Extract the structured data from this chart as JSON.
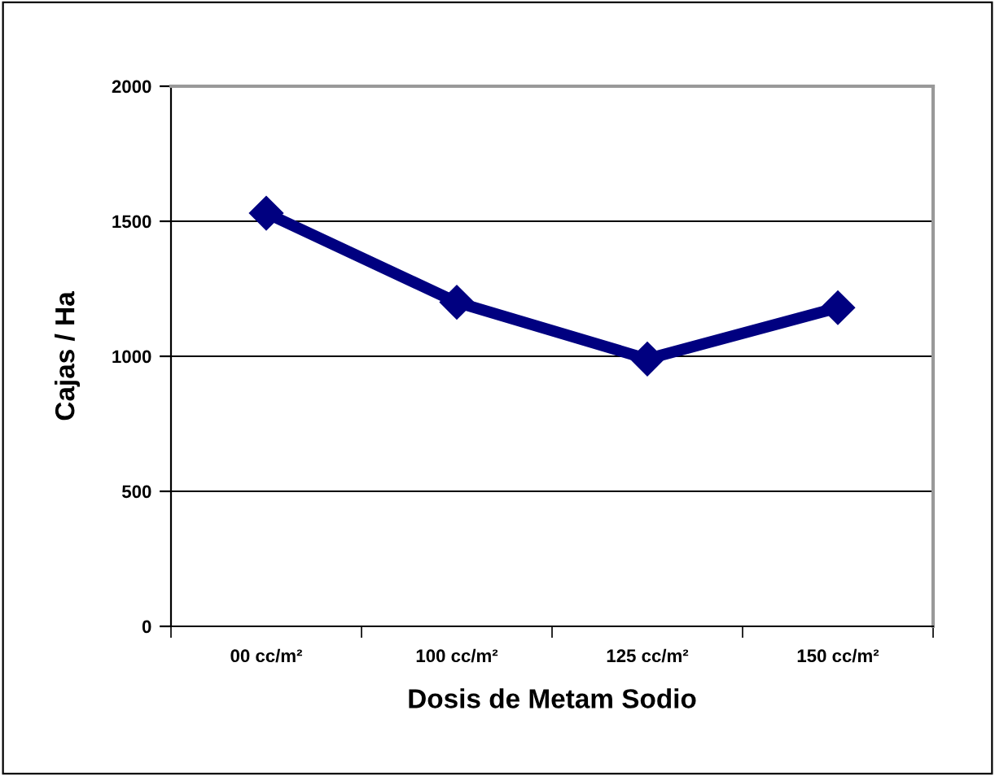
{
  "chart_data": {
    "type": "line",
    "xlabel": "Dosis de Metam Sodio",
    "ylabel": "Cajas / Ha",
    "categories": [
      "00 cc/m²",
      "100 cc/m²",
      "125 cc/m²",
      "150 cc/m²"
    ],
    "series": [
      {
        "color": "#000080",
        "values": [
          1530,
          1200,
          990,
          1180
        ]
      }
    ],
    "ylim": [
      0,
      2000
    ],
    "yticks": [
      0,
      500,
      1000,
      1500,
      2000
    ],
    "grid": "y",
    "marker": "diamond",
    "line_style": "solid",
    "legend": false
  }
}
